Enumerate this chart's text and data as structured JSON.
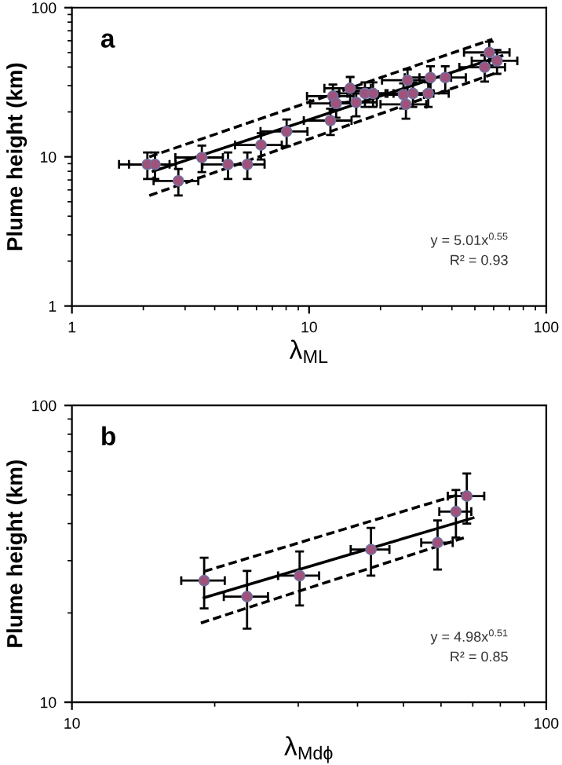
{
  "chart_data": [
    {
      "type": "scatter",
      "xlabel": "λ$_{ML}$",
      "ylabel": "Plume height (km)",
      "log": "xy",
      "xlim": [
        1,
        100
      ],
      "ylim": [
        1,
        100
      ],
      "xticks": [
        1,
        10,
        100
      ],
      "yticks": [
        1,
        10,
        100
      ],
      "grid": false,
      "legend": false,
      "marker": "circle",
      "annotations": [
        "a",
        "y = 5.01x$^{0.55}$",
        "R² = 0.93"
      ],
      "series": [
        {
          "color": "#a0527a",
          "x": [
            2.08,
            2.24,
            2.81,
            3.53,
            4.55,
            5.49,
            6.27,
            8.04,
            12.3,
            12.6,
            13.0,
            14.9,
            15.8,
            17.2,
            18.6,
            25.0,
            25.6,
            26.0,
            27.4,
            31.8,
            32.5,
            37.5,
            55.0,
            57.5,
            62.0
          ],
          "values": [
            8.9,
            8.9,
            6.9,
            9.9,
            8.9,
            8.9,
            12.0,
            14.8,
            17.5,
            25.5,
            22.8,
            28.8,
            23.2,
            26.6,
            26.6,
            26.1,
            22.5,
            32.6,
            26.6,
            26.6,
            34.0,
            34.0,
            39.9,
            50.1,
            44.0
          ],
          "errors": [
            1.8,
            1.8,
            1.4,
            2,
            1.8,
            1.8,
            2.4,
            3,
            3.5,
            5,
            4.5,
            5.5,
            4.5,
            5,
            5,
            5,
            4.5,
            6,
            5,
            5,
            6.5,
            6.5,
            8,
            9,
            8
          ],
          "xerrors": [
            0.5,
            0.5,
            0.6,
            0.8,
            1,
            1,
            1.4,
            1.8,
            2.8,
            2.8,
            2.9,
            3.3,
            3.5,
            3.8,
            4.1,
            5.5,
            5.6,
            5.7,
            6,
            7,
            7.2,
            8.3,
            12,
            12.5,
            13.5
          ]
        },
        {
          "type": "line",
          "color": "#000000",
          "line_style": "solid",
          "marker": "none",
          "x": [
            2.2,
            65
          ],
          "values": [
            8.0,
            47.5
          ]
        },
        {
          "type": "line",
          "color": "#000000",
          "line_style": "dashed",
          "marker": "none",
          "x": [
            2.12,
            59.3
          ],
          "values": [
            10.0,
            61.4
          ]
        },
        {
          "type": "line",
          "color": "#000000",
          "line_style": "dashed",
          "marker": "none",
          "x": [
            2.12,
            60.7
          ],
          "values": [
            5.5,
            36.3
          ]
        }
      ]
    },
    {
      "type": "scatter",
      "xlabel": "λ$_{Mdϕ}$",
      "ylabel": "Plume height (km)",
      "log": "xy",
      "xlim": [
        10,
        100
      ],
      "ylim": [
        10,
        100
      ],
      "xticks": [
        10,
        100
      ],
      "yticks": [
        10,
        100
      ],
      "grid": false,
      "legend": false,
      "marker": "circle",
      "annotations": [
        "b",
        "y = 4.98x$^{0.51}$",
        "R² = 0.85"
      ],
      "series": [
        {
          "color": "#a0527a",
          "x": [
            19.0,
            23.4,
            30.2,
            42.7,
            59.0,
            64.5,
            68.0
          ],
          "values": [
            25.7,
            22.7,
            26.7,
            32.7,
            34.5,
            43.9,
            49.5
          ],
          "errors": [
            5,
            5,
            5.5,
            6,
            6.5,
            8,
            9.5
          ],
          "xerrors": [
            2,
            2.5,
            3,
            4,
            4.5,
            5,
            6
          ]
        },
        {
          "type": "line",
          "color": "#000000",
          "line_style": "solid",
          "marker": "none",
          "x": [
            19.0,
            70.1
          ],
          "values": [
            22.5,
            41.8
          ]
        },
        {
          "type": "line",
          "color": "#000000",
          "line_style": "dashed",
          "marker": "none",
          "x": [
            19.0,
            68.4
          ],
          "values": [
            27.6,
            51.2
          ]
        },
        {
          "type": "line",
          "color": "#000000",
          "line_style": "dashed",
          "marker": "none",
          "x": [
            18.7,
            67.3
          ],
          "values": [
            18.5,
            35.9
          ]
        }
      ]
    }
  ]
}
